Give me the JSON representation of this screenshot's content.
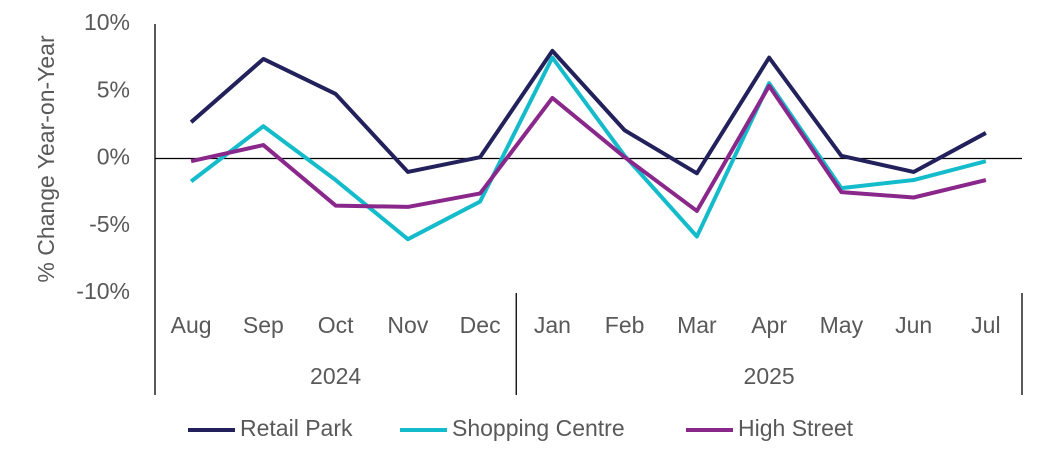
{
  "chart_data": {
    "type": "line",
    "y_label": "% Change Year-on-Year",
    "groups": [
      {
        "label": "2024",
        "categories": [
          "Aug",
          "Sep",
          "Oct",
          "Nov",
          "Dec"
        ]
      },
      {
        "label": "2025",
        "categories": [
          "Jan",
          "Feb",
          "Mar",
          "Apr",
          "May",
          "Jun",
          "Jul"
        ]
      }
    ],
    "series": [
      {
        "name": "Retail Park",
        "color": "#23215b",
        "values": [
          2.7,
          7.4,
          4.8,
          -1.0,
          0.1,
          8.0,
          2.1,
          -1.1,
          7.5,
          0.2,
          -1.0,
          1.9
        ]
      },
      {
        "name": "Shopping Centre",
        "color": "#14bccb",
        "values": [
          -1.7,
          2.4,
          -1.6,
          -6.0,
          -3.2,
          7.5,
          0.2,
          -5.8,
          5.6,
          -2.2,
          -1.6,
          -0.2
        ]
      },
      {
        "name": "High Street",
        "color": "#8a278b",
        "values": [
          -0.2,
          1.0,
          -3.5,
          -3.6,
          -2.6,
          4.5,
          0.1,
          -3.9,
          5.4,
          -2.5,
          -2.9,
          -1.6
        ]
      }
    ],
    "ylim": [
      -10,
      10
    ],
    "yticks": [
      {
        "value": 10,
        "label": "10%"
      },
      {
        "value": 5,
        "label": "5%"
      },
      {
        "value": 0,
        "label": "0%"
      },
      {
        "value": -5,
        "label": "-5%"
      },
      {
        "value": -10,
        "label": "-10%"
      }
    ],
    "grid": false,
    "legend": "bottom"
  }
}
